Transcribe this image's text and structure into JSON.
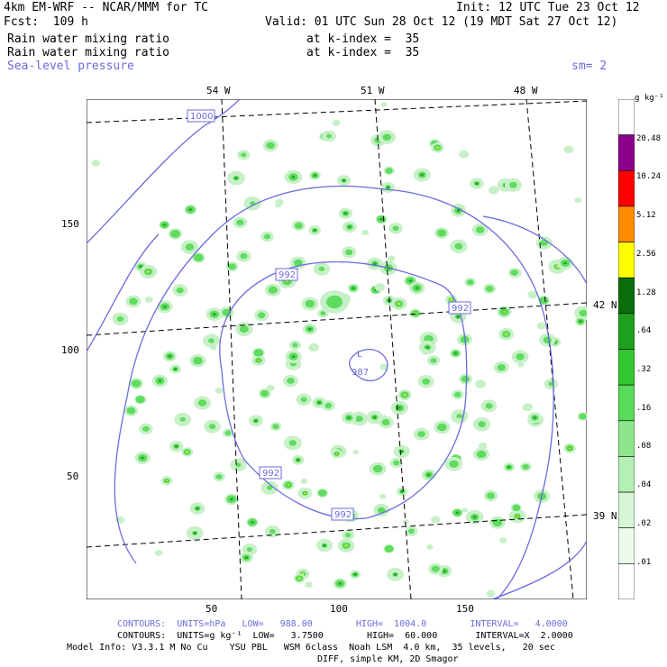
{
  "header": {
    "title": "4km EM-WRF -- NCAR/MMM for TC",
    "init": "Init: 12 UTC Tue 23 Oct 12",
    "fcst": "Fcst:  109 h",
    "valid": "Valid: 01 UTC Sun 28 Oct 12 (19 MDT Sat 27 Oct 12)",
    "field1": "Rain water mixing ratio",
    "field1_level": "at k-index =  35",
    "field2": "Rain water mixing ratio",
    "field2_level": "at k-index =  35",
    "field3": "Sea-level pressure",
    "smooth": "sm= 2"
  },
  "map": {
    "lon_labels": [
      "54 W",
      "51 W",
      "48 W"
    ],
    "lat_labels": [
      "42 N",
      "39 N"
    ],
    "x_ticks": [
      "50",
      "100",
      "150"
    ],
    "y_ticks": [
      "150",
      "100",
      "50"
    ],
    "contour_labels": [
      "1000",
      "992",
      "992",
      "992",
      "992",
      "987"
    ],
    "low_marker": "L",
    "colors": {
      "contour": "#6b6bdc",
      "grid": "#000000",
      "rain_light": "#c8f0c8",
      "rain_mid": "#5edc5e",
      "rain_dark": "#1fa81f",
      "rain_heavy": "#f5f500"
    }
  },
  "colorbar": {
    "unit": "g kg⁻¹",
    "labels": [
      "20.48",
      "10.24",
      "5.12",
      "2.56",
      "1.28",
      ".64",
      ".32",
      ".16",
      ".08",
      ".04",
      ".02",
      ".01"
    ],
    "colors": [
      "#ffffff",
      "#8b008b",
      "#ff0000",
      "#ff8c00",
      "#ffff00",
      "#0a6e0a",
      "#1ea01e",
      "#32c832",
      "#5ada5a",
      "#8ce68c",
      "#b4f0b4",
      "#d6f6d6",
      "#ecfaec",
      "#ffffff"
    ]
  },
  "footer": {
    "contours1": "CONTOURS:  UNITS=hPa   LOW=   988.00        HIGH=  1004.0        INTERVAL=   4.0000",
    "contours2": "CONTOURS:  UNITS=g kg⁻¹  LOW=   3.7500        HIGH=  60.000       INTERVAL=X  2.0000",
    "model1": "Model Info: V3.3.1 M No Cu    YSU PBL   WSM 6class  Noah LSM  4.0 km,  35 levels,   20 sec",
    "model2": "DIFF, simple KM, 2D Smagor"
  }
}
